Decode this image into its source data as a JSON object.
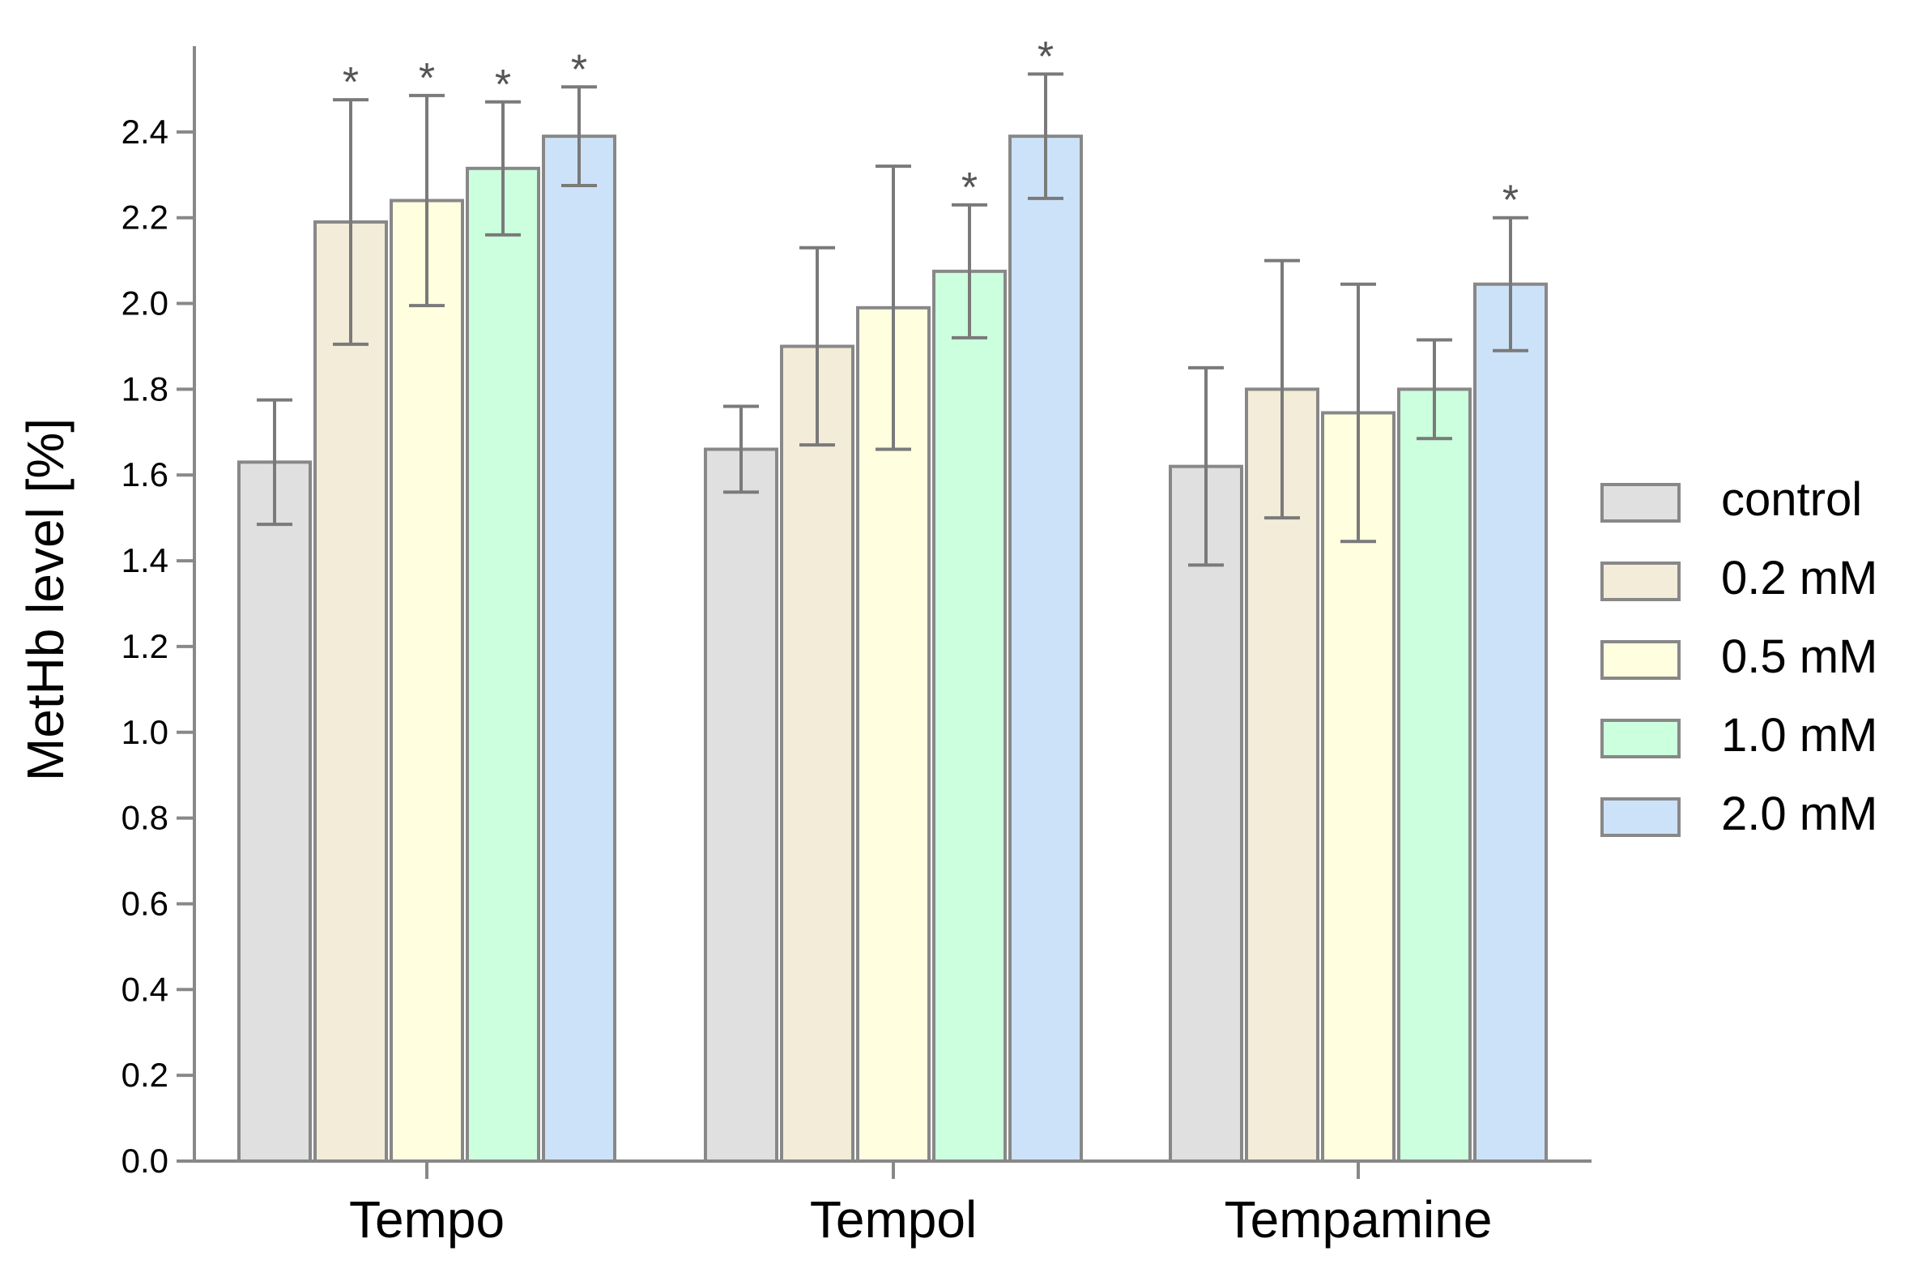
{
  "chart_data": {
    "type": "bar",
    "title": "",
    "xlabel": "",
    "ylabel": "MetHb level [%]",
    "ylim": [
      0,
      2.6
    ],
    "yticks": [
      "0.0",
      "0.2",
      "0.4",
      "0.6",
      "0.8",
      "1.0",
      "1.2",
      "1.4",
      "1.6",
      "1.8",
      "2.0",
      "2.2",
      "2.4"
    ],
    "categories": [
      "Tempo",
      "Tempol",
      "Tempamine"
    ],
    "significance_marker": "*",
    "legend_position": "right",
    "series": [
      {
        "name": "control",
        "color": "#e0e0e0",
        "values": [
          1.63,
          1.66,
          1.62
        ],
        "errors": [
          0.145,
          0.1,
          0.23
        ],
        "significant": [
          false,
          false,
          false
        ]
      },
      {
        "name": "0.2 mM",
        "color": "#f2ecd8",
        "values": [
          2.19,
          1.9,
          1.8
        ],
        "errors": [
          0.285,
          0.23,
          0.3
        ],
        "significant": [
          true,
          false,
          false
        ]
      },
      {
        "name": "0.5 mM",
        "color": "#ffffe0",
        "values": [
          2.24,
          1.99,
          1.745
        ],
        "errors": [
          0.245,
          0.33,
          0.3
        ],
        "significant": [
          true,
          false,
          false
        ]
      },
      {
        "name": "1.0 mM",
        "color": "#ccffdd",
        "values": [
          2.315,
          2.075,
          1.8
        ],
        "errors": [
          0.155,
          0.155,
          0.115
        ],
        "significant": [
          true,
          true,
          false
        ]
      },
      {
        "name": "2.0 mM",
        "color": "#cce2f8",
        "values": [
          2.39,
          2.39,
          2.045
        ],
        "errors": [
          0.115,
          0.145,
          0.155
        ],
        "significant": [
          true,
          true,
          true
        ]
      }
    ]
  }
}
